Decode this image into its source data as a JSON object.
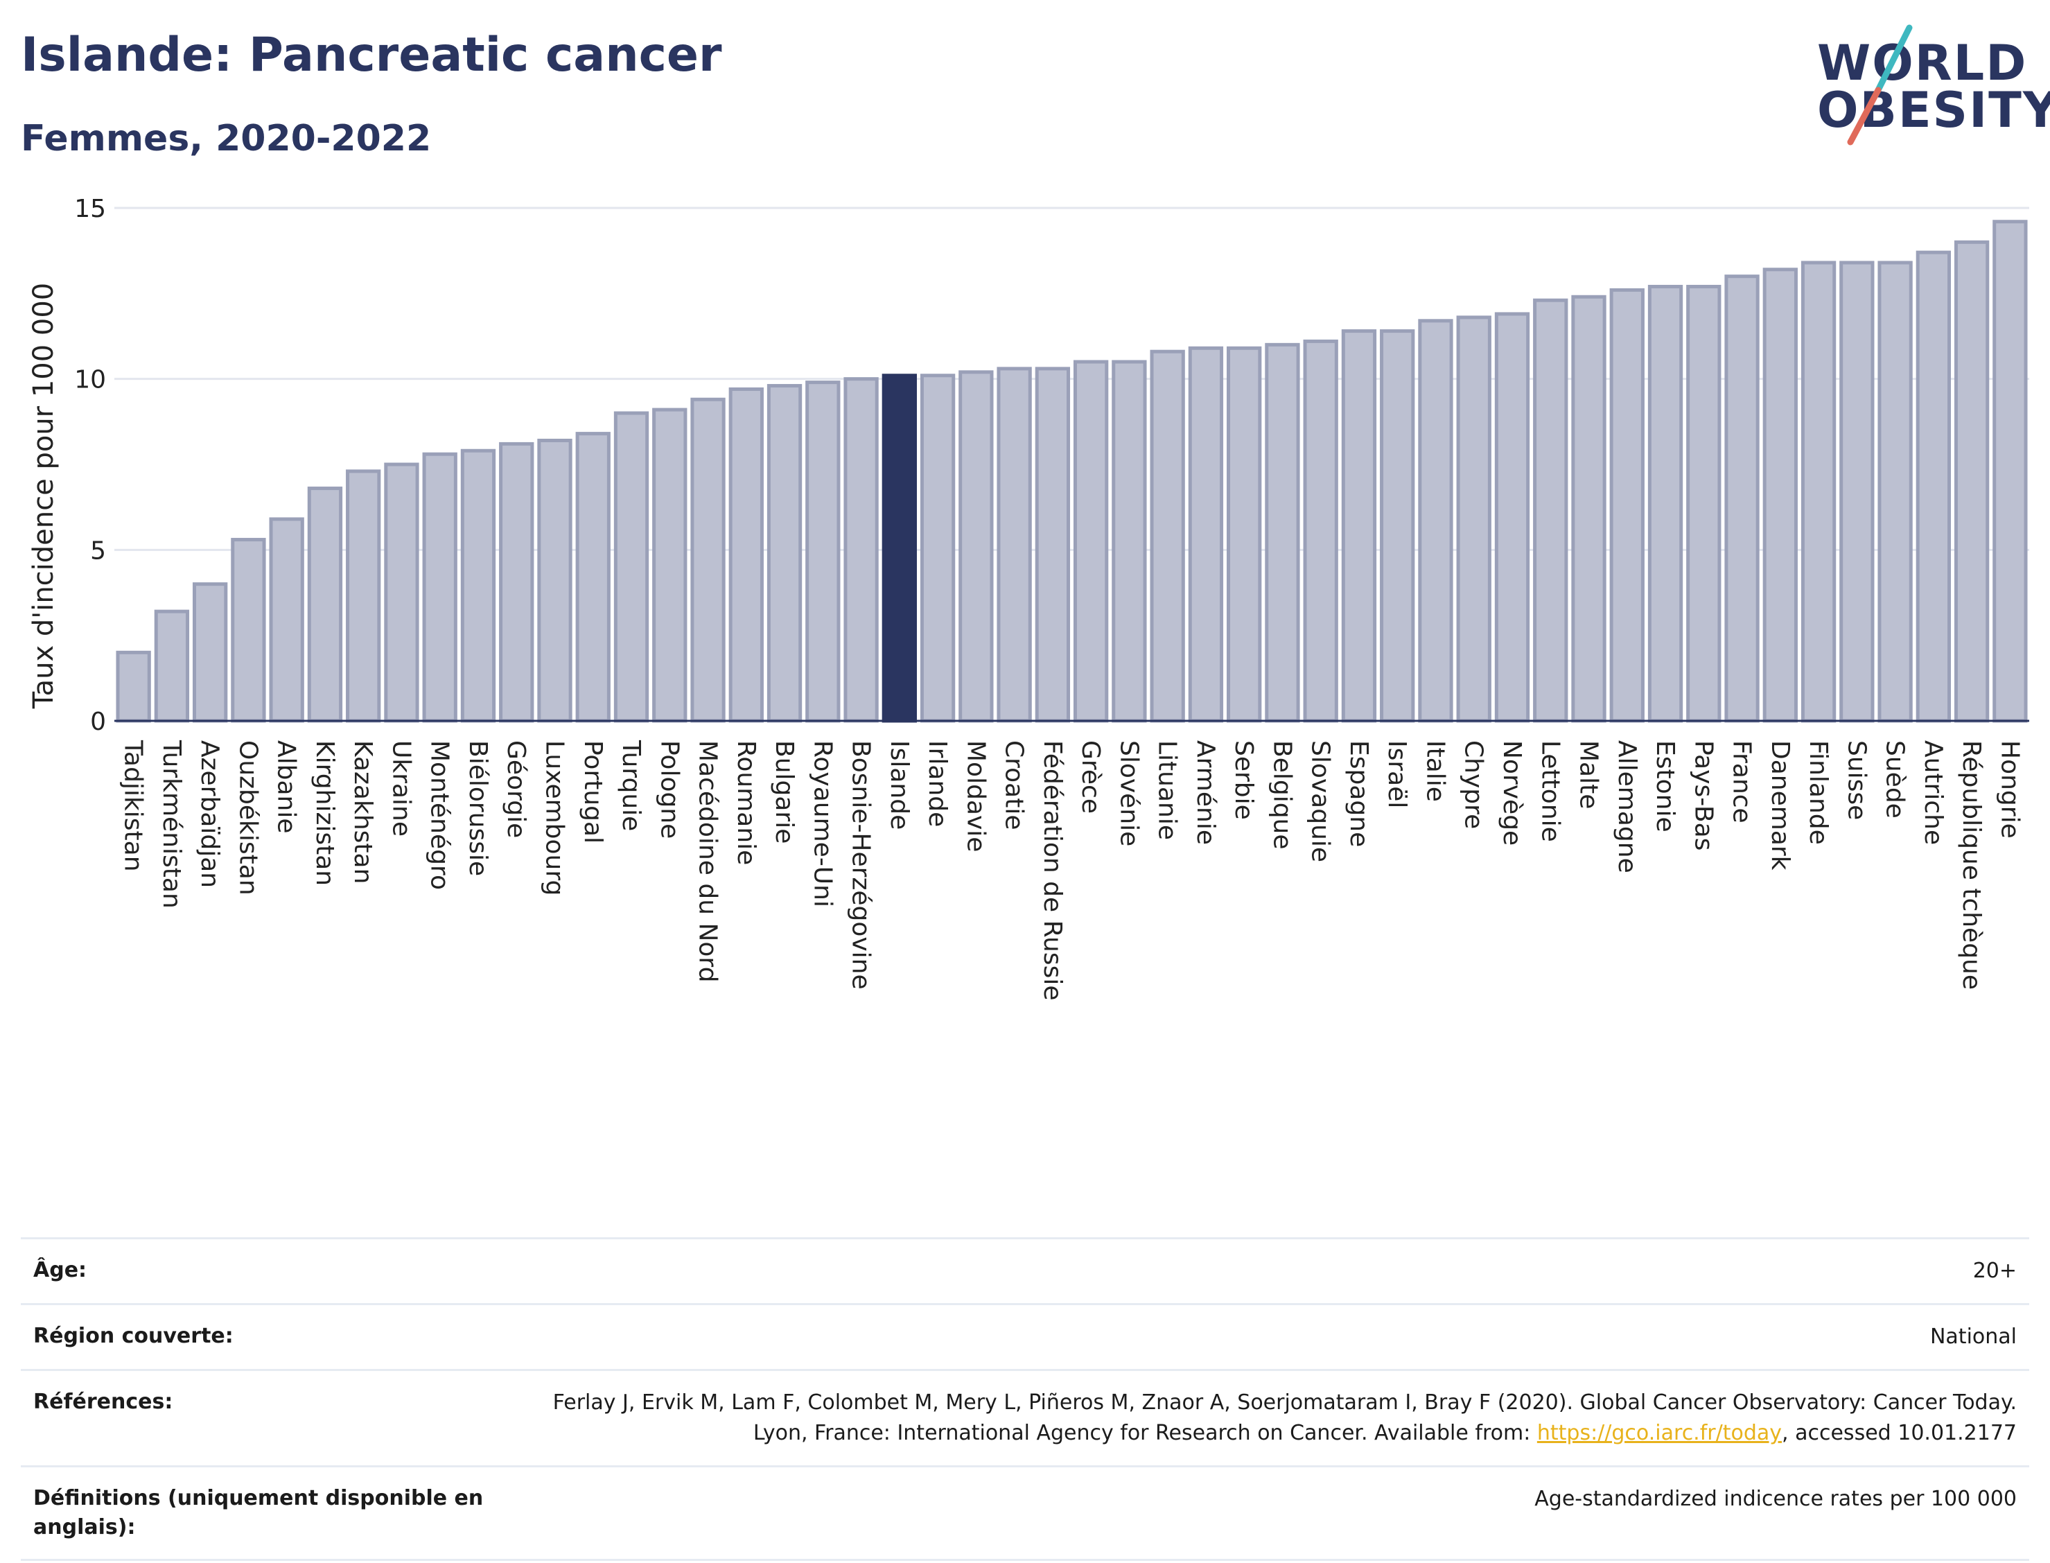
{
  "header": {
    "title": "Islande: Pancreatic cancer",
    "subtitle": "Femmes, 2020-2022"
  },
  "logo": {
    "line1": "WORLD",
    "line2": "OBESITY",
    "slash_colors": [
      "#3fb8c0",
      "#e06a5a"
    ]
  },
  "colors": {
    "bar": "#bcc0d1",
    "bar_stroke": "#9aa0b8",
    "highlight": "#2a3560",
    "grid": "#e3e6ee"
  },
  "chart_data": {
    "type": "bar",
    "ylabel": "Taux d'incidence pour 100 000",
    "ylim": [
      0,
      15
    ],
    "yticks": [
      0,
      5,
      10,
      15
    ],
    "grid": true,
    "highlight": "Islande",
    "categories": [
      "Tadjikistan",
      "Turkménistan",
      "Azerbaïdjan",
      "Ouzbékistan",
      "Albanie",
      "Kirghizistan",
      "Kazakhstan",
      "Ukraine",
      "Monténégro",
      "Biélorussie",
      "Géorgie",
      "Luxembourg",
      "Portugal",
      "Turquie",
      "Pologne",
      "Macédoine du Nord",
      "Roumanie",
      "Bulgarie",
      "Royaume-Uni",
      "Bosnie-Herzégovine",
      "Islande",
      "Irlande",
      "Moldavie",
      "Croatie",
      "Fédération de Russie",
      "Grèce",
      "Slovénie",
      "Lituanie",
      "Arménie",
      "Serbie",
      "Belgique",
      "Slovaquie",
      "Espagne",
      "Israël",
      "Italie",
      "Chypre",
      "Norvège",
      "Lettonie",
      "Malte",
      "Allemagne",
      "Estonie",
      "Pays-Bas",
      "France",
      "Danemark",
      "Finlande",
      "Suisse",
      "Suède",
      "Autriche",
      "République tchèque",
      "Hongrie"
    ],
    "values": [
      2.0,
      3.2,
      4.0,
      5.3,
      5.9,
      6.8,
      7.3,
      7.5,
      7.8,
      7.9,
      8.1,
      8.2,
      8.4,
      9.0,
      9.1,
      9.4,
      9.7,
      9.8,
      9.9,
      10.0,
      10.1,
      10.1,
      10.2,
      10.3,
      10.3,
      10.5,
      10.5,
      10.8,
      10.9,
      10.9,
      11.0,
      11.1,
      11.4,
      11.4,
      11.7,
      11.8,
      11.9,
      12.3,
      12.4,
      12.6,
      12.7,
      12.7,
      13.0,
      13.2,
      13.4,
      13.4,
      13.4,
      13.7,
      14.0,
      14.6
    ]
  },
  "meta": {
    "age_label": "Âge:",
    "age_value": "20+",
    "region_label": "Région couverte:",
    "region_value": "National",
    "refs_label": "Références:",
    "refs_text": "Ferlay J, Ervik M, Lam F, Colombet M, Mery L, Piñeros M, Znaor A, Soerjomataram I, Bray F (2020). Global Cancer Observatory: Cancer Today. Lyon, France: International Agency for Research on Cancer. Available from:",
    "refs_link": "https://gco.iarc.fr/today",
    "refs_suffix": ", accessed 10.01.2177",
    "defs_label": "Définitions (uniquement disponible en anglais):",
    "defs_value": "Age-standardized indicence rates per 100 000"
  }
}
